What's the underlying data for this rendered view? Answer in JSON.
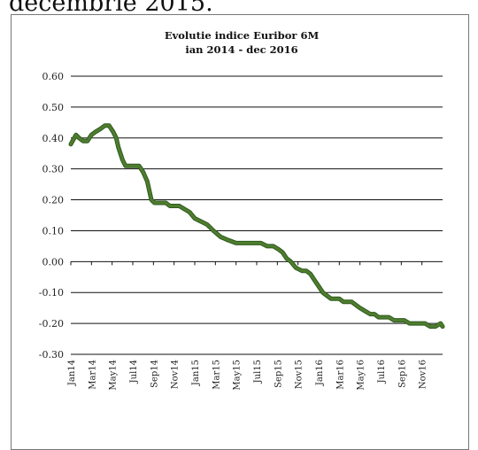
{
  "page": {
    "header_text": "decembrie 2015."
  },
  "colors": {
    "line": "#4e7d2e",
    "line_edge": "#2f5a1f",
    "grid": "#111111"
  },
  "chart_data": {
    "type": "line",
    "title": "Evolutie indice Euribor 6M",
    "subtitle": "ian 2014 - dec 2016",
    "xlabel": "",
    "ylabel": "",
    "ylim": [
      -0.3,
      0.6
    ],
    "yticks": [
      "0.60",
      "0.50",
      "0.40",
      "0.30",
      "0.20",
      "0.10",
      "0.00",
      "-0.10",
      "-0.20",
      "-0.30"
    ],
    "ytick_values": [
      0.6,
      0.5,
      0.4,
      0.3,
      0.2,
      0.1,
      0.0,
      -0.1,
      -0.2,
      -0.3
    ],
    "grid": true,
    "x_range_months": [
      0,
      36
    ],
    "xticks": [
      "Jan14",
      "Mar14",
      "May14",
      "Jul14",
      "Sep14",
      "Nov14",
      "Jan15",
      "Mar15",
      "May15",
      "Jul15",
      "Sep15",
      "Nov15",
      "Jan16",
      "Mar16",
      "May16",
      "Jul16",
      "Sep16",
      "Nov16"
    ],
    "series": [
      {
        "x": [
          0,
          0.5,
          0.8,
          1.2,
          1.6,
          2.0,
          2.4,
          2.9,
          3.3,
          3.7,
          4.1,
          4.4,
          4.6,
          5.0,
          5.3,
          5.6,
          5.9,
          6.2,
          6.6,
          7.0,
          7.4,
          7.8,
          8.1,
          8.4,
          8.8,
          9.2,
          9.6,
          10.0,
          10.5,
          11.0,
          11.5,
          12.0,
          12.6,
          13.2,
          13.8,
          14.5,
          15.2,
          16.0,
          16.8,
          17.6,
          18.4,
          19.0,
          19.6,
          20.1,
          20.5,
          20.9,
          21.3,
          21.8,
          22.4,
          22.8,
          23.2,
          23.6,
          24.0,
          24.4,
          24.8,
          25.2,
          25.6,
          26.0,
          26.4,
          26.8,
          27.2,
          27.6,
          28.0,
          28.5,
          29.0,
          29.4,
          29.8,
          30.3,
          30.8,
          31.3,
          31.8,
          32.3,
          32.8,
          33.3,
          33.8,
          34.3,
          34.8,
          35.3,
          35.8,
          36.0
        ],
        "y": [
          0.38,
          0.41,
          0.4,
          0.39,
          0.39,
          0.41,
          0.42,
          0.43,
          0.44,
          0.44,
          0.42,
          0.4,
          0.37,
          0.33,
          0.31,
          0.31,
          0.31,
          0.31,
          0.31,
          0.29,
          0.26,
          0.2,
          0.19,
          0.19,
          0.19,
          0.19,
          0.18,
          0.18,
          0.18,
          0.17,
          0.16,
          0.14,
          0.13,
          0.12,
          0.1,
          0.08,
          0.07,
          0.06,
          0.06,
          0.06,
          0.06,
          0.05,
          0.05,
          0.04,
          0.03,
          0.01,
          0.0,
          -0.02,
          -0.03,
          -0.03,
          -0.04,
          -0.06,
          -0.08,
          -0.1,
          -0.11,
          -0.12,
          -0.12,
          -0.12,
          -0.13,
          -0.13,
          -0.13,
          -0.14,
          -0.15,
          -0.16,
          -0.17,
          -0.17,
          -0.18,
          -0.18,
          -0.18,
          -0.19,
          -0.19,
          -0.19,
          -0.2,
          -0.2,
          -0.2,
          -0.2,
          -0.21,
          -0.21,
          -0.2,
          -0.21
        ]
      }
    ]
  }
}
